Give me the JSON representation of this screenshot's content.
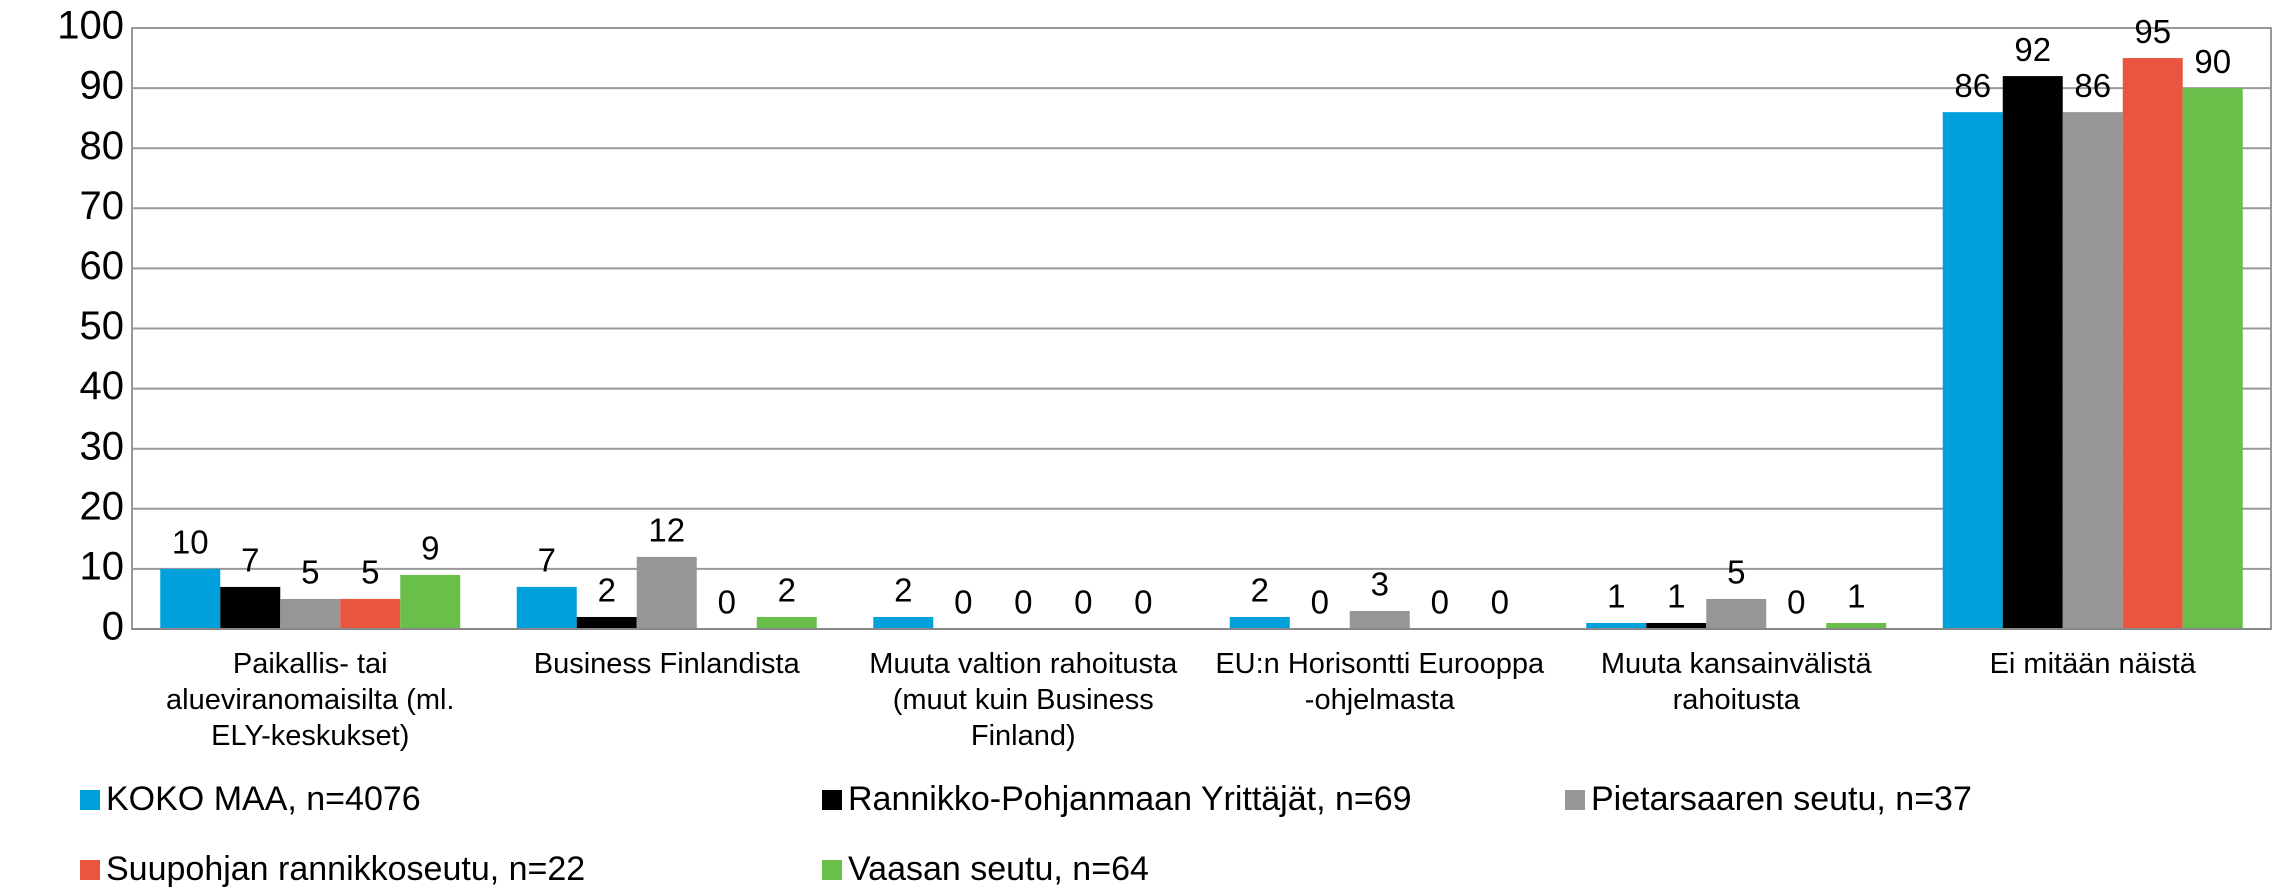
{
  "chart_data": {
    "type": "bar",
    "categories": [
      "Paikallis- tai alueviranomaisilta (ml. ELY-keskukset)",
      "Business Finlandista",
      "Muuta valtion rahoitusta (muut kuin Business Finland)",
      "EU:n Horisontti Eurooppa -ohjelmasta",
      "Muuta kansainvälistä rahoitusta",
      "Ei mitään näistä"
    ],
    "series": [
      {
        "name": "KOKO MAA, n=4076",
        "color": "#00a0dc",
        "values": [
          10,
          7,
          2,
          2,
          1,
          86
        ]
      },
      {
        "name": "Rannikko-Pohjanmaan Yrittäjät, n=69",
        "color": "#000000",
        "values": [
          7,
          2,
          0,
          0,
          1,
          92
        ]
      },
      {
        "name": "Pietarsaaren seutu, n=37",
        "color": "#969696",
        "values": [
          5,
          12,
          0,
          3,
          5,
          86
        ]
      },
      {
        "name": "Suupohjan rannikkoseutu, n=22",
        "color": "#e8563f",
        "values": [
          5,
          0,
          0,
          0,
          0,
          95
        ]
      },
      {
        "name": "Vaasan seutu, n=64",
        "color": "#6abf4b",
        "values": [
          9,
          2,
          0,
          0,
          1,
          90
        ]
      }
    ],
    "ylim": [
      0,
      100
    ],
    "yticks": [
      0,
      10,
      20,
      30,
      40,
      50,
      60,
      70,
      80,
      90,
      100
    ],
    "grid": true,
    "legend": "bottom"
  }
}
